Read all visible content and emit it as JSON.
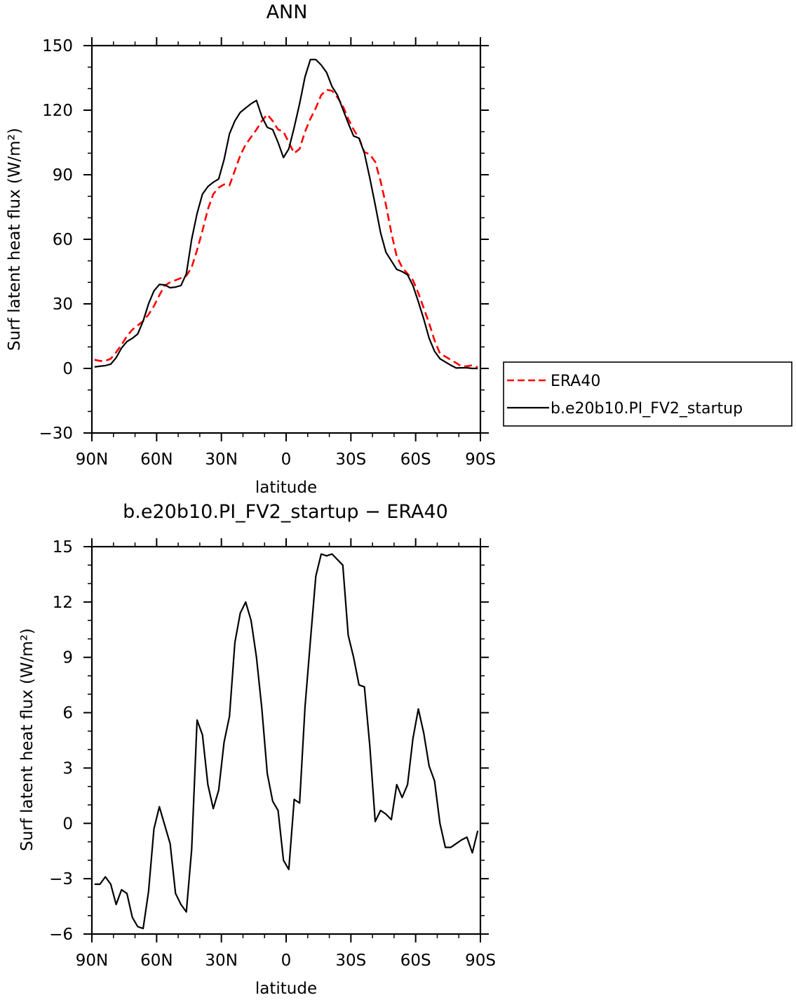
{
  "chart_data": [
    {
      "type": "line",
      "title": "ANN",
      "xlabel": "latitude",
      "ylabel": "Surf latent heat flux (W/m²)",
      "xlim": [
        90,
        -90
      ],
      "ylim": [
        -30,
        150
      ],
      "x_ticks": [
        90,
        60,
        30,
        0,
        -30,
        -60,
        -90
      ],
      "x_tick_labels": [
        "90N",
        "60N",
        "30N",
        "0",
        "30S",
        "60S",
        "90S"
      ],
      "y_ticks": [
        -30,
        0,
        30,
        60,
        90,
        120,
        150
      ],
      "y_tick_labels": [
        "−30",
        "0",
        "30",
        "60",
        "90",
        "120",
        "150"
      ],
      "grid": false,
      "legend": "right",
      "series": [
        {
          "name": "ERA40",
          "color": "#ff0000",
          "style": "dashed",
          "x": [
            88.75,
            86.25,
            83.75,
            81.25,
            78.75,
            76.25,
            73.75,
            71.25,
            68.75,
            66.25,
            63.75,
            61.25,
            58.75,
            56.25,
            53.75,
            51.25,
            48.75,
            46.25,
            43.75,
            41.25,
            38.75,
            36.25,
            33.75,
            31.25,
            28.75,
            26.25,
            23.75,
            21.25,
            18.75,
            16.25,
            13.75,
            11.25,
            8.75,
            6.25,
            3.75,
            1.25,
            -1.25,
            -3.75,
            -6.25,
            -8.75,
            -11.25,
            -13.75,
            -16.25,
            -18.75,
            -21.25,
            -23.75,
            -26.25,
            -28.75,
            -31.25,
            -33.75,
            -36.25,
            -38.75,
            -41.25,
            -43.75,
            -46.25,
            -48.75,
            -51.25,
            -53.75,
            -56.25,
            -58.75,
            -61.25,
            -63.75,
            -66.25,
            -68.75,
            -71.25,
            -73.75,
            -76.25,
            -78.75,
            -81.25,
            -83.75,
            -86.25,
            -88.75
          ],
          "values": [
            4,
            3.5,
            3.5,
            4.5,
            7.5,
            11,
            15,
            18,
            20,
            22,
            25,
            29,
            34,
            38.5,
            40,
            41,
            42,
            43,
            47,
            55,
            64,
            74,
            81,
            84,
            85.5,
            85,
            92,
            99,
            104,
            107.5,
            111,
            115,
            118,
            115,
            111,
            110,
            105,
            100,
            102,
            110,
            116,
            121,
            127,
            129.5,
            129,
            126,
            122,
            116,
            111,
            107,
            100.5,
            99.5,
            96,
            87,
            76,
            63,
            52,
            47,
            44,
            41,
            35,
            28,
            21,
            13,
            7,
            5.5,
            4,
            2.5,
            1,
            1,
            1.5,
            0.5
          ]
        },
        {
          "name": "b.e20b10.PI_FV2_startup",
          "color": "#000000",
          "style": "solid",
          "x": [
            88.75,
            86.25,
            83.75,
            81.25,
            78.75,
            76.25,
            73.75,
            71.25,
            68.75,
            66.25,
            63.75,
            61.25,
            58.75,
            56.25,
            53.75,
            51.25,
            48.75,
            46.25,
            43.75,
            41.25,
            38.75,
            36.25,
            33.75,
            31.25,
            28.75,
            26.25,
            23.75,
            21.25,
            18.75,
            16.25,
            13.75,
            11.25,
            8.75,
            6.25,
            3.75,
            1.25,
            -1.25,
            -3.75,
            -6.25,
            -8.75,
            -11.25,
            -13.75,
            -16.25,
            -18.75,
            -21.25,
            -23.75,
            -26.25,
            -28.75,
            -31.25,
            -33.75,
            -36.25,
            -38.75,
            -41.25,
            -43.75,
            -46.25,
            -48.75,
            -51.25,
            -53.75,
            -56.25,
            -58.75,
            -61.25,
            -63.75,
            -66.25,
            -68.75,
            -71.25,
            -73.75,
            -76.25,
            -78.75,
            -81.25,
            -83.75,
            -86.25,
            -88.75
          ],
          "values": [
            0.7,
            1,
            1.3,
            2,
            5,
            9.5,
            12.5,
            14,
            16,
            22,
            30,
            36,
            39,
            38.8,
            37.5,
            37.8,
            38.5,
            44,
            60,
            72,
            81,
            84.5,
            86.5,
            88,
            97,
            109,
            115,
            119,
            121,
            123,
            124.5,
            117,
            112,
            111,
            105,
            98,
            102,
            112,
            123,
            135.5,
            143.5,
            143.5,
            141,
            137.5,
            131,
            127,
            120.5,
            114,
            108,
            107,
            100,
            88.5,
            76,
            63,
            54,
            50,
            46,
            45,
            43.5,
            38.5,
            31,
            23,
            14,
            8,
            4.5,
            3,
            1.5,
            0.2,
            0.3,
            0.3,
            0,
            0
          ]
        }
      ]
    },
    {
      "type": "line",
      "title": "b.e20b10.PI_FV2_startup − ERA40",
      "xlabel": "latitude",
      "ylabel": "Surf latent heat flux (W/m²)",
      "xlim": [
        90,
        -90
      ],
      "ylim": [
        -6,
        15
      ],
      "x_ticks": [
        90,
        60,
        30,
        0,
        -30,
        -60,
        -90
      ],
      "x_tick_labels": [
        "90N",
        "60N",
        "30N",
        "0",
        "30S",
        "60S",
        "90S"
      ],
      "y_ticks": [
        -6,
        -3,
        0,
        3,
        6,
        9,
        12,
        15
      ],
      "y_tick_labels": [
        "−6",
        "−3",
        "0",
        "3",
        "6",
        "9",
        "12",
        "15"
      ],
      "grid": false,
      "series": [
        {
          "color": "#000000",
          "style": "solid",
          "x": [
            88.75,
            86.25,
            83.75,
            81.25,
            78.75,
            76.25,
            73.75,
            71.25,
            68.75,
            66.25,
            63.75,
            61.25,
            58.75,
            56.25,
            53.75,
            51.25,
            48.75,
            46.25,
            43.75,
            41.25,
            38.75,
            36.25,
            33.75,
            31.25,
            28.75,
            26.25,
            23.75,
            21.25,
            18.75,
            16.25,
            13.75,
            11.25,
            8.75,
            6.25,
            3.75,
            1.25,
            -1.25,
            -3.75,
            -6.25,
            -8.75,
            -11.25,
            -13.75,
            -16.25,
            -18.75,
            -21.25,
            -23.75,
            -26.25,
            -28.75,
            -31.25,
            -33.75,
            -36.25,
            -38.75,
            -41.25,
            -43.75,
            -46.25,
            -48.75,
            -51.25,
            -53.75,
            -56.25,
            -58.75,
            -61.25,
            -63.75,
            -66.25,
            -68.75,
            -71.25,
            -73.75,
            -76.25,
            -78.75,
            -81.25,
            -83.75,
            -86.25,
            -88.75
          ],
          "values": [
            -3.3,
            -3.3,
            -2.9,
            -3.3,
            -4.4,
            -3.6,
            -3.8,
            -5.1,
            -5.6,
            -5.7,
            -3.7,
            -0.3,
            0.9,
            -0.1,
            -1.1,
            -3.8,
            -4.4,
            -4.8,
            -1.4,
            5.6,
            4.8,
            2.1,
            0.8,
            1.8,
            4.4,
            5.8,
            9.8,
            11.4,
            12,
            11,
            9,
            6.2,
            2.7,
            1.2,
            0.7,
            -2,
            -2.5,
            1.3,
            1.1,
            6.3,
            9.9,
            13.4,
            14.6,
            14.5,
            14.6,
            14.3,
            14,
            10.2,
            9,
            7.5,
            7.4,
            4.2,
            0.1,
            0.7,
            0.5,
            0.2,
            2.1,
            1.4,
            2.1,
            4.6,
            6.2,
            4.9,
            3.1,
            2.3,
            0,
            -1.3,
            -1.3,
            -1.1,
            -0.9,
            -0.75,
            -1.6,
            -0.4
          ]
        }
      ]
    }
  ]
}
